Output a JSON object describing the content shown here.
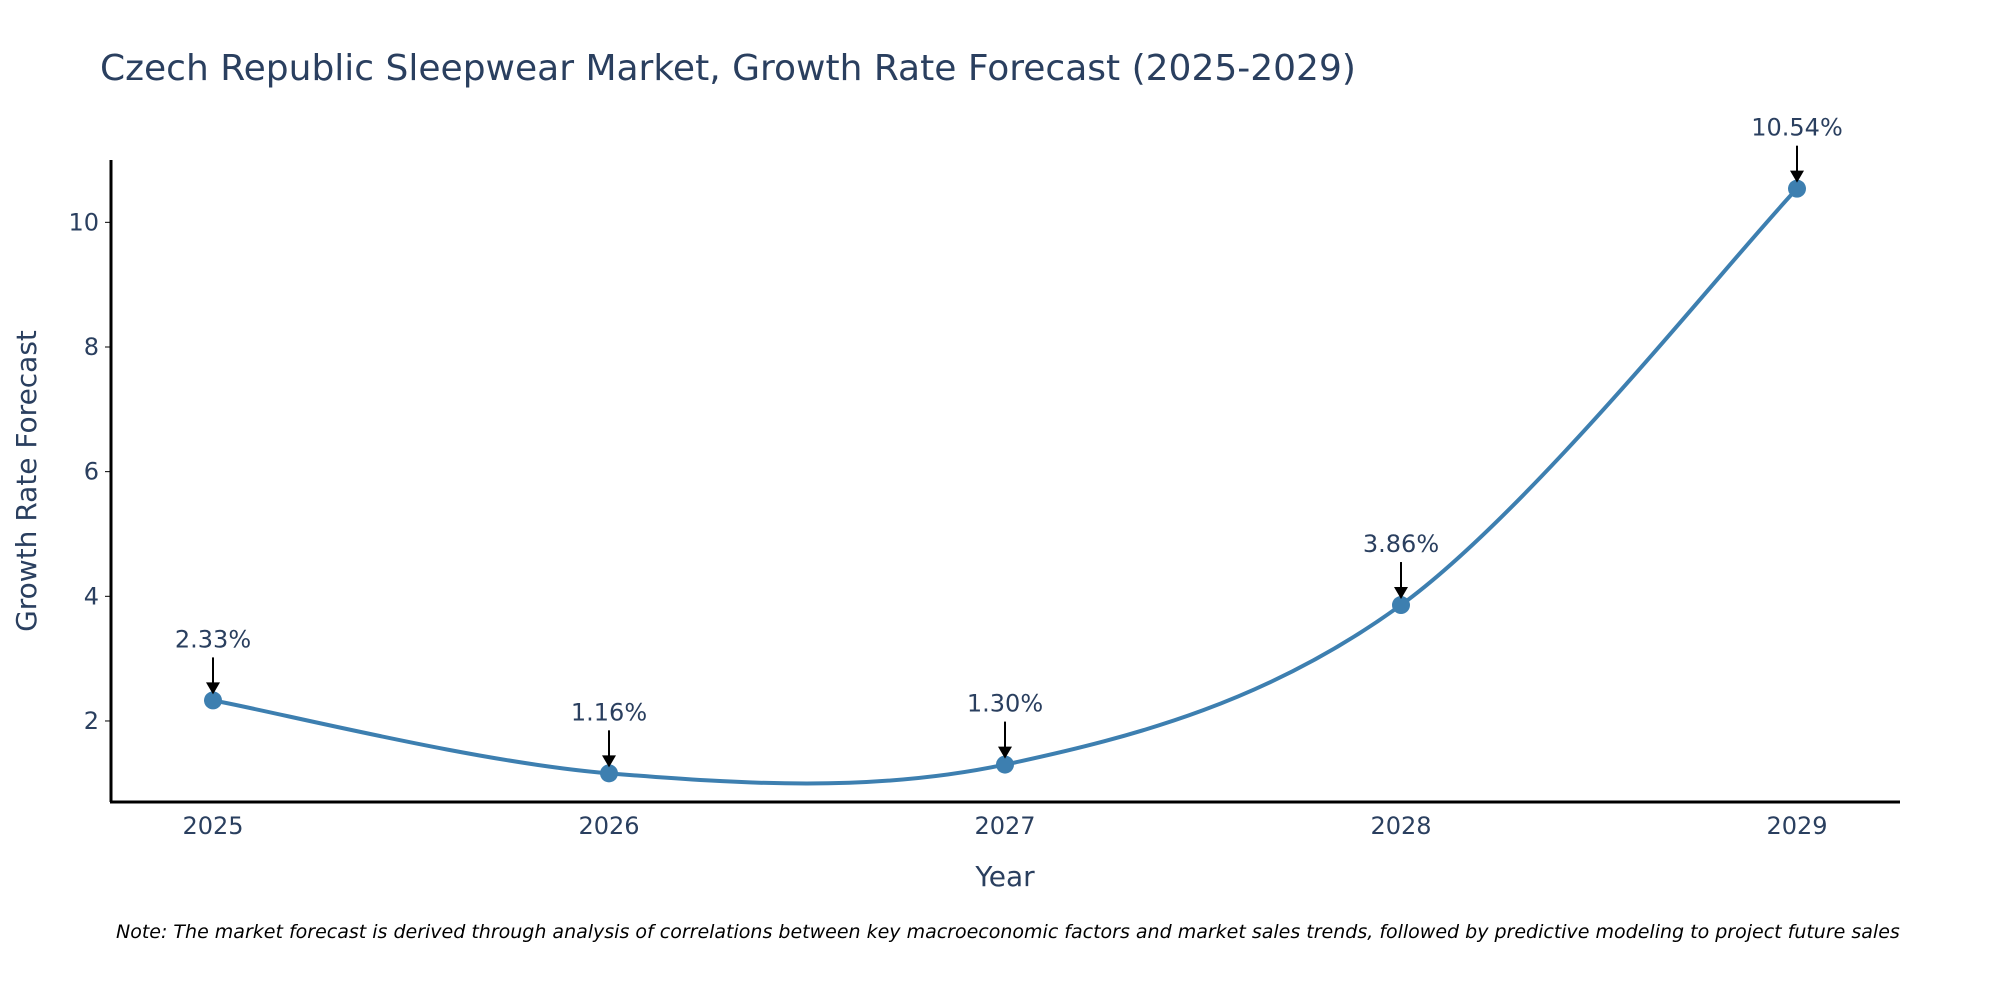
{
  "chart_data": {
    "type": "line",
    "title": "Czech Republic Sleepwear Market, Growth Rate Forecast (2025-2029)",
    "xlabel": "Year",
    "ylabel": "Growth Rate Forecast",
    "categories": [
      "2025",
      "2026",
      "2027",
      "2028",
      "2029"
    ],
    "values": [
      2.33,
      1.16,
      1.3,
      3.86,
      10.54
    ],
    "data_labels": [
      "2.33%",
      "1.16%",
      "1.30%",
      "3.86%",
      "10.54%"
    ],
    "y_ticks": [
      2,
      4,
      6,
      8,
      10
    ],
    "ylim": [
      0.7,
      11.0
    ],
    "grid": false,
    "line_shape": "spline",
    "colors": {
      "line": "#3d7fb0",
      "marker": "#3d7fb0",
      "text": "#2a3f5f",
      "axis": "#000000"
    }
  },
  "note": "Note: The market forecast is derived through analysis of correlations between key macroeconomic factors and market sales trends, followed by predictive modeling to project future sales"
}
